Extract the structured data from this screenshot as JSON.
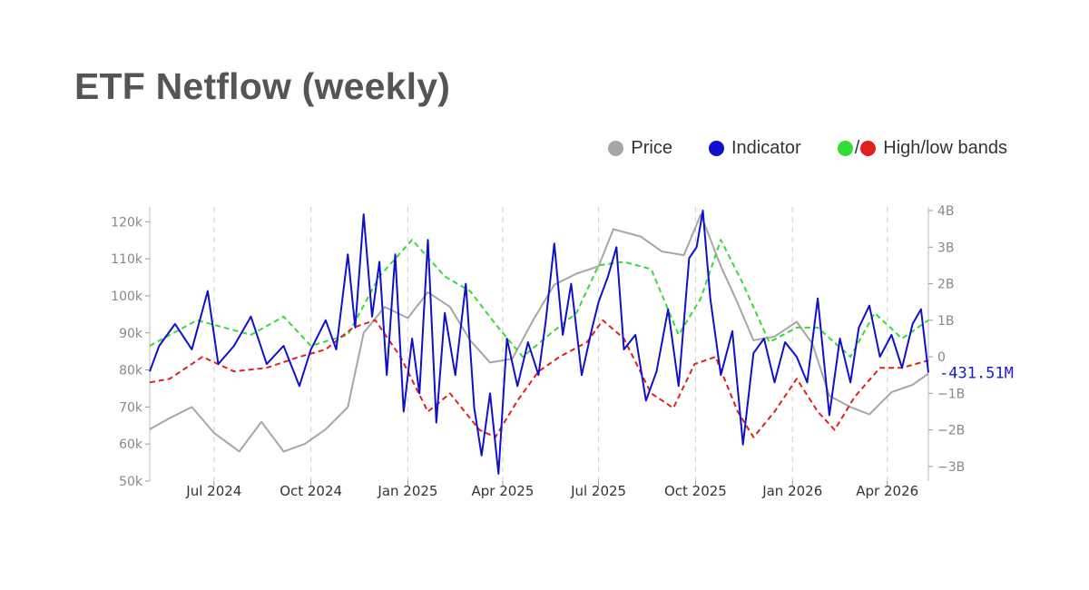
{
  "title": "ETF Netflow (weekly)",
  "legend": {
    "price": "Price",
    "indicator": "Indicator",
    "slash": "/",
    "bands": "High/low bands"
  },
  "colors": {
    "price": "#a6a6a6",
    "indicator": "#1010cc",
    "high_band": "#33dd33",
    "low_band": "#e02020"
  },
  "chart_data": {
    "type": "line",
    "x_ticks": [
      "Jul 2024",
      "Oct 2024",
      "Jan 2025",
      "Apr 2025",
      "Jul 2025",
      "Oct 2025",
      "Jan 2026",
      "Apr 2026"
    ],
    "x_range": [
      "2024-05-01",
      "2026-05-10"
    ],
    "y_left": {
      "ticks": [
        "50k",
        "60k",
        "70k",
        "80k",
        "90k",
        "100k",
        "110k",
        "120k"
      ],
      "range": [
        50000,
        124000
      ]
    },
    "y_right": {
      "ticks": [
        "−3B",
        "−2B",
        "−1B",
        "0",
        "1B",
        "2B",
        "3B",
        "4B"
      ],
      "range": [
        -3.4,
        4.1
      ]
    },
    "last_value_label": "-431.51M",
    "grid": "vertical dashed",
    "legend_position": "top-right",
    "series": [
      {
        "name": "Price",
        "axis": "left",
        "x": [
          "2024-05-01",
          "2024-05-20",
          "2024-06-10",
          "2024-07-01",
          "2024-07-25",
          "2024-08-15",
          "2024-09-05",
          "2024-09-25",
          "2024-10-15",
          "2024-11-05",
          "2024-11-20",
          "2024-12-10",
          "2025-01-01",
          "2025-01-20",
          "2025-02-10",
          "2025-03-01",
          "2025-03-20",
          "2025-04-10",
          "2025-05-01",
          "2025-05-20",
          "2025-06-10",
          "2025-07-01",
          "2025-07-15",
          "2025-08-10",
          "2025-08-30",
          "2025-09-20",
          "2025-10-06",
          "2025-10-25",
          "2025-11-10",
          "2025-11-25",
          "2025-12-15",
          "2026-01-05",
          "2026-01-20",
          "2026-02-05",
          "2026-02-25",
          "2026-03-15",
          "2026-04-05",
          "2026-04-25",
          "2026-05-10"
        ],
        "y": [
          64000,
          67000,
          70000,
          63000,
          58000,
          66000,
          58000,
          60000,
          64000,
          70000,
          90000,
          97000,
          94000,
          101000,
          97000,
          88000,
          82000,
          83000,
          94000,
          103000,
          106000,
          108000,
          118000,
          116000,
          112000,
          111000,
          122000,
          108000,
          98000,
          88000,
          89000,
          93000,
          87000,
          73000,
          70000,
          68000,
          74000,
          76000,
          79000
        ]
      },
      {
        "name": "Indicator",
        "axis": "right",
        "x": [
          "2024-05-01",
          "2024-05-10",
          "2024-05-25",
          "2024-06-10",
          "2024-06-25",
          "2024-07-05",
          "2024-07-20",
          "2024-08-05",
          "2024-08-20",
          "2024-09-05",
          "2024-09-20",
          "2024-10-01",
          "2024-10-15",
          "2024-10-25",
          "2024-11-05",
          "2024-11-12",
          "2024-11-20",
          "2024-11-28",
          "2024-12-05",
          "2024-12-12",
          "2024-12-20",
          "2024-12-28",
          "2025-01-05",
          "2025-01-12",
          "2025-01-20",
          "2025-01-28",
          "2025-02-05",
          "2025-02-15",
          "2025-02-25",
          "2025-03-05",
          "2025-03-12",
          "2025-03-20",
          "2025-03-28",
          "2025-04-05",
          "2025-04-15",
          "2025-04-25",
          "2025-05-05",
          "2025-05-12",
          "2025-05-20",
          "2025-05-28",
          "2025-06-05",
          "2025-06-15",
          "2025-06-25",
          "2025-07-01",
          "2025-07-10",
          "2025-07-18",
          "2025-07-25",
          "2025-08-05",
          "2025-08-15",
          "2025-08-25",
          "2025-09-05",
          "2025-09-15",
          "2025-09-25",
          "2025-10-02",
          "2025-10-08",
          "2025-10-15",
          "2025-10-25",
          "2025-11-05",
          "2025-11-15",
          "2025-11-25",
          "2025-12-05",
          "2025-12-15",
          "2025-12-25",
          "2026-01-05",
          "2026-01-15",
          "2026-01-25",
          "2026-02-05",
          "2026-02-15",
          "2026-02-25",
          "2026-03-05",
          "2026-03-15",
          "2026-03-25",
          "2026-04-05",
          "2026-04-15",
          "2026-04-25",
          "2026-05-03",
          "2026-05-10"
        ],
        "y": [
          -0.4,
          0.3,
          0.9,
          0.2,
          1.8,
          -0.2,
          0.3,
          1.1,
          -0.2,
          0.3,
          -0.8,
          0.2,
          1.0,
          0.2,
          2.8,
          0.8,
          3.9,
          1.1,
          2.6,
          -0.5,
          2.8,
          -1.5,
          0.5,
          -1.0,
          3.2,
          -1.8,
          1.2,
          -0.5,
          2.0,
          -1.4,
          -2.7,
          -1.0,
          -3.2,
          0.5,
          -0.8,
          0.4,
          -0.5,
          1.0,
          3.1,
          0.6,
          2.0,
          -0.5,
          0.8,
          1.5,
          2.2,
          3.0,
          0.2,
          0.6,
          -1.2,
          -0.4,
          1.3,
          -0.8,
          2.7,
          3.0,
          4.0,
          1.6,
          -0.5,
          0.7,
          -2.4,
          0.1,
          0.5,
          -0.7,
          0.4,
          0.0,
          -0.7,
          1.6,
          -1.6,
          0.5,
          -0.7,
          0.8,
          1.4,
          0.0,
          0.6,
          -0.3,
          0.9,
          1.3,
          -0.43
        ]
      },
      {
        "name": "High band",
        "axis": "right",
        "x": [
          "2024-05-01",
          "2024-06-15",
          "2024-08-05",
          "2024-09-05",
          "2024-10-01",
          "2024-11-05",
          "2024-12-05",
          "2025-01-05",
          "2025-02-05",
          "2025-03-01",
          "2025-03-25",
          "2025-04-20",
          "2025-05-15",
          "2025-06-10",
          "2025-07-01",
          "2025-07-25",
          "2025-08-20",
          "2025-09-15",
          "2025-10-06",
          "2025-10-25",
          "2025-11-15",
          "2025-12-10",
          "2026-01-05",
          "2026-01-25",
          "2026-02-25",
          "2026-03-20",
          "2026-04-15",
          "2026-05-10"
        ],
        "y": [
          0.3,
          1.0,
          0.6,
          1.1,
          0.3,
          0.6,
          2.2,
          3.2,
          2.2,
          1.8,
          0.9,
          0.0,
          0.6,
          1.2,
          2.5,
          2.6,
          2.4,
          0.6,
          1.6,
          3.2,
          2.0,
          0.4,
          0.8,
          0.8,
          0.0,
          1.2,
          0.5,
          1.0
        ]
      },
      {
        "name": "Low band",
        "axis": "right",
        "x": [
          "2024-05-01",
          "2024-05-20",
          "2024-06-20",
          "2024-07-20",
          "2024-08-20",
          "2024-09-20",
          "2024-10-15",
          "2024-11-10",
          "2024-12-01",
          "2024-12-25",
          "2025-01-20",
          "2025-02-10",
          "2025-03-10",
          "2025-03-25",
          "2025-04-15",
          "2025-05-05",
          "2025-05-25",
          "2025-06-20",
          "2025-07-05",
          "2025-07-25",
          "2025-08-20",
          "2025-09-10",
          "2025-09-30",
          "2025-10-20",
          "2025-11-10",
          "2025-11-25",
          "2025-12-15",
          "2026-01-05",
          "2026-01-25",
          "2026-02-10",
          "2026-03-01",
          "2026-03-25",
          "2026-04-15",
          "2026-05-10"
        ],
        "y": [
          -0.7,
          -0.6,
          0.0,
          -0.4,
          -0.3,
          0.0,
          0.2,
          0.8,
          1.0,
          0.0,
          -1.5,
          -1.0,
          -2.0,
          -2.2,
          -1.2,
          -0.4,
          0.0,
          0.4,
          1.0,
          0.5,
          -1.0,
          -1.4,
          -0.2,
          0.0,
          -1.5,
          -2.2,
          -1.5,
          -0.6,
          -1.5,
          -2.0,
          -1.1,
          -0.3,
          -0.3,
          -0.1
        ]
      }
    ]
  }
}
